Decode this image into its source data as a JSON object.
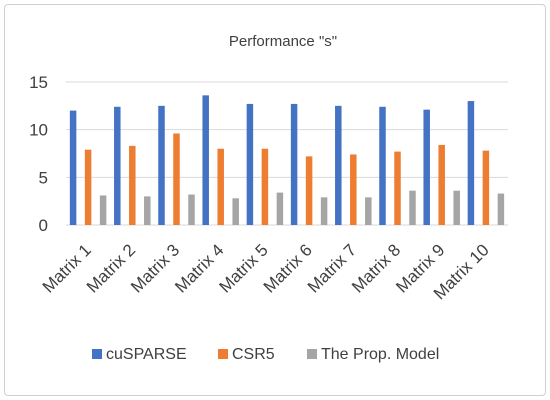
{
  "chart_data": {
    "type": "bar",
    "title": "Performance \"s\"",
    "xlabel": "",
    "ylabel": "",
    "ylim": [
      0,
      15
    ],
    "yticks": [
      0,
      5,
      10,
      15
    ],
    "grid": true,
    "legend_position": "bottom",
    "categories": [
      "Matrix 1",
      "Matrix 2",
      "Matrix 3",
      "Matrix 4",
      "Matrix 5",
      "Matrix 6",
      "Matrix 7",
      "Matrix 8",
      "Matrix 9",
      "Matrix 10"
    ],
    "series": [
      {
        "name": "cuSPARSE",
        "color": "#4472C4",
        "values": [
          12.0,
          12.4,
          12.5,
          13.6,
          12.7,
          12.7,
          12.5,
          12.4,
          12.1,
          13.0
        ]
      },
      {
        "name": "CSR5",
        "color": "#ED7D31",
        "values": [
          7.9,
          8.3,
          9.6,
          8.0,
          8.0,
          7.2,
          7.4,
          7.7,
          8.4,
          7.8
        ]
      },
      {
        "name": "The Prop. Model",
        "color": "#A5A5A5",
        "values": [
          3.1,
          3.0,
          3.2,
          2.8,
          3.4,
          2.9,
          2.9,
          3.6,
          3.6,
          3.3
        ]
      }
    ]
  }
}
